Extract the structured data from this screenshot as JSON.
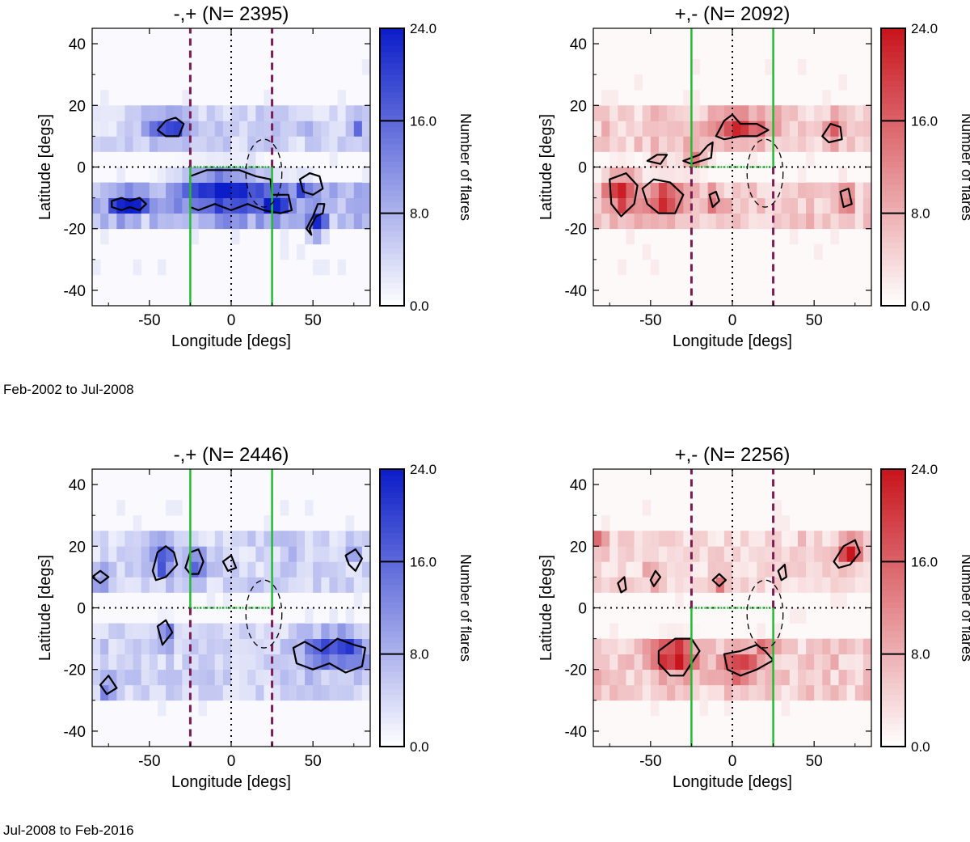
{
  "figure": {
    "period_labels": [
      "Feb-2002 to Jul-2008",
      "Jul-2008 to Feb-2016"
    ],
    "colorbar_label": "Number of flares",
    "colorbar_ticks": [
      "0.0",
      "8.0",
      "16.0",
      "24.0"
    ],
    "colorbar_range": [
      0,
      24
    ],
    "colorbar_contour_levels": [
      8,
      16
    ],
    "colors": {
      "blue_max": "#0b1dc8",
      "red_max": "#c8141c",
      "green_line": "#22bb33",
      "purple_dash": "#7a1c55"
    }
  },
  "chart_data": [
    {
      "type": "heatmap",
      "title": "-,+ (N= 2395)",
      "colormap": "blue",
      "xlabel": "Longitude [degs]",
      "ylabel": "Latitude [degs]",
      "xlim": [
        -85,
        85
      ],
      "ylim": [
        -45,
        45
      ],
      "xticks": [
        -50,
        0,
        50
      ],
      "yticks": [
        -40,
        -20,
        0,
        20,
        40
      ],
      "green_box": {
        "x": [
          -25,
          25
        ],
        "y_from": 0,
        "y_to": -45
      },
      "dashed_lines_x": [
        -25,
        25
      ],
      "dashed_span": [
        0,
        45
      ],
      "circle": {
        "x": 20,
        "y": -2,
        "r": 11
      },
      "bands": [
        {
          "lat": [
            5,
            18
          ],
          "peak": 7
        },
        {
          "lat": [
            -18,
            -4
          ],
          "peak": 10
        }
      ],
      "hotspots": [
        {
          "lon": -38,
          "lat": 13,
          "value": 20,
          "rlon": 8,
          "rlat": 3
        },
        {
          "lon": -5,
          "lat": -8,
          "value": 23,
          "rlon": 20,
          "rlat": 5
        },
        {
          "lon": 28,
          "lat": -12,
          "value": 20,
          "rlon": 6,
          "rlat": 3
        },
        {
          "lon": -68,
          "lat": -12,
          "value": 22,
          "rlon": 5,
          "rlat": 3
        },
        {
          "lon": -58,
          "lat": -12,
          "value": 19,
          "rlon": 4,
          "rlat": 2
        },
        {
          "lon": 52,
          "lat": -19,
          "value": 19,
          "rlon": 4,
          "rlat": 3
        },
        {
          "lon": 55,
          "lat": -10,
          "value": 15,
          "rlon": 3,
          "rlat": 2
        },
        {
          "lon": 45,
          "lat": -6,
          "value": 14,
          "rlon": 5,
          "rlat": 2
        },
        {
          "lon": 78,
          "lat": 13,
          "value": 14,
          "rlon": 2,
          "rlat": 2
        }
      ],
      "contours": [
        [
          [
            -45,
            12
          ],
          [
            -40,
            15
          ],
          [
            -34,
            16
          ],
          [
            -29,
            14
          ],
          [
            -32,
            10
          ],
          [
            -40,
            10
          ]
        ],
        [
          [
            -25,
            -3
          ],
          [
            -15,
            -1
          ],
          [
            -5,
            -1
          ],
          [
            5,
            -1
          ],
          [
            15,
            -3
          ],
          [
            24,
            -4
          ],
          [
            25,
            -9
          ],
          [
            35,
            -9
          ],
          [
            37,
            -14
          ],
          [
            30,
            -15
          ],
          [
            20,
            -14
          ],
          [
            10,
            -12
          ],
          [
            0,
            -14
          ],
          [
            -10,
            -12
          ],
          [
            -20,
            -14
          ],
          [
            -25,
            -13
          ]
        ],
        [
          [
            -73,
            -11
          ],
          [
            -67,
            -10
          ],
          [
            -62,
            -11
          ],
          [
            -56,
            -10
          ],
          [
            -52,
            -12
          ],
          [
            -56,
            -14
          ],
          [
            -62,
            -13
          ],
          [
            -67,
            -14
          ],
          [
            -73,
            -13
          ]
        ],
        [
          [
            48,
            -20
          ],
          [
            52,
            -16
          ],
          [
            56,
            -15
          ],
          [
            57,
            -12
          ],
          [
            53,
            -12
          ],
          [
            50,
            -16
          ],
          [
            46,
            -20
          ],
          [
            49,
            -22
          ]
        ],
        [
          [
            42,
            -4
          ],
          [
            48,
            -2
          ],
          [
            54,
            -3
          ],
          [
            56,
            -7
          ],
          [
            50,
            -9
          ],
          [
            44,
            -8
          ]
        ]
      ]
    },
    {
      "type": "heatmap",
      "title": "+,- (N= 2092)",
      "colormap": "red",
      "xlabel": "Longitude [degs]",
      "ylabel": "Latitude [degs]",
      "xlim": [
        -85,
        85
      ],
      "ylim": [
        -45,
        45
      ],
      "xticks": [
        -50,
        0,
        50
      ],
      "yticks": [
        -40,
        -20,
        0,
        20,
        40
      ],
      "green_box": {
        "x": [
          -25,
          25
        ],
        "y_from": 0,
        "y_to": 45
      },
      "dashed_lines_x": [
        -25,
        25
      ],
      "dashed_span": [
        0,
        -45
      ],
      "circle": {
        "x": 20,
        "y": -2,
        "r": 11
      },
      "bands": [
        {
          "lat": [
            5,
            18
          ],
          "peak": 7
        },
        {
          "lat": [
            -18,
            -4
          ],
          "peak": 8
        }
      ],
      "hotspots": [
        {
          "lon": 5,
          "lat": 13,
          "value": 19,
          "rlon": 14,
          "rlat": 3
        },
        {
          "lon": -68,
          "lat": -8,
          "value": 20,
          "rlon": 7,
          "rlat": 5
        },
        {
          "lon": -40,
          "lat": -10,
          "value": 18,
          "rlon": 9,
          "rlat": 4
        },
        {
          "lon": -23,
          "lat": 3,
          "value": 14,
          "rlon": 6,
          "rlat": 3
        },
        {
          "lon": 62,
          "lat": 12,
          "value": 15,
          "rlon": 4,
          "rlat": 3
        },
        {
          "lon": 70,
          "lat": -10,
          "value": 14,
          "rlon": 3,
          "rlat": 3
        },
        {
          "lon": -45,
          "lat": 4,
          "value": 12,
          "rlon": 4,
          "rlat": 2
        },
        {
          "lon": -12,
          "lat": -10,
          "value": 14,
          "rlon": 3,
          "rlat": 2
        }
      ],
      "contours": [
        [
          [
            -10,
            10
          ],
          [
            -5,
            15
          ],
          [
            0,
            17
          ],
          [
            5,
            14
          ],
          [
            15,
            14
          ],
          [
            22,
            12
          ],
          [
            15,
            10
          ],
          [
            5,
            10
          ],
          [
            -5,
            9
          ]
        ],
        [
          [
            -75,
            -4
          ],
          [
            -65,
            -2
          ],
          [
            -58,
            -6
          ],
          [
            -60,
            -12
          ],
          [
            -68,
            -16
          ],
          [
            -74,
            -12
          ]
        ],
        [
          [
            -55,
            -7
          ],
          [
            -48,
            -4
          ],
          [
            -38,
            -5
          ],
          [
            -30,
            -9
          ],
          [
            -35,
            -15
          ],
          [
            -45,
            -15
          ],
          [
            -52,
            -12
          ]
        ],
        [
          [
            -30,
            2
          ],
          [
            -20,
            4
          ],
          [
            -15,
            7
          ],
          [
            -12,
            8
          ],
          [
            -13,
            3
          ],
          [
            -25,
            1
          ]
        ],
        [
          [
            55,
            10
          ],
          [
            60,
            14
          ],
          [
            66,
            13
          ],
          [
            67,
            9
          ],
          [
            59,
            8
          ]
        ],
        [
          [
            -52,
            2
          ],
          [
            -46,
            4
          ],
          [
            -40,
            4
          ],
          [
            -44,
            1
          ]
        ],
        [
          [
            -14,
            -9
          ],
          [
            -10,
            -8
          ],
          [
            -8,
            -11
          ],
          [
            -12,
            -13
          ]
        ],
        [
          [
            66,
            -8
          ],
          [
            71,
            -7
          ],
          [
            73,
            -12
          ],
          [
            68,
            -13
          ]
        ]
      ]
    },
    {
      "type": "heatmap",
      "title": "-,+ (N= 2446)",
      "colormap": "blue",
      "xlabel": "Longitude [degs]",
      "ylabel": "Latitude [degs]",
      "xlim": [
        -85,
        85
      ],
      "ylim": [
        -45,
        45
      ],
      "xticks": [
        -50,
        0,
        50
      ],
      "yticks": [
        -40,
        -20,
        0,
        20,
        40
      ],
      "green_box": {
        "x": [
          -25,
          25
        ],
        "y_from": 0,
        "y_to": 45
      },
      "dashed_lines_x": [
        -25,
        25
      ],
      "dashed_span": [
        0,
        -45
      ],
      "circle": {
        "x": 20,
        "y": -2,
        "r": 11
      },
      "bands": [
        {
          "lat": [
            5,
            25
          ],
          "peak": 7
        },
        {
          "lat": [
            -28,
            -5
          ],
          "peak": 7
        }
      ],
      "hotspots": [
        {
          "lon": -42,
          "lat": 16,
          "value": 17,
          "rlon": 5,
          "rlat": 4
        },
        {
          "lon": -20,
          "lat": 15,
          "value": 16,
          "rlon": 4,
          "rlat": 3
        },
        {
          "lon": 65,
          "lat": -14,
          "value": 20,
          "rlon": 14,
          "rlat": 4
        },
        {
          "lon": -75,
          "lat": -25,
          "value": 16,
          "rlon": 3,
          "rlat": 2
        },
        {
          "lon": 75,
          "lat": 17,
          "value": 13,
          "rlon": 3,
          "rlat": 2
        },
        {
          "lon": -80,
          "lat": 10,
          "value": 14,
          "rlon": 4,
          "rlat": 2
        },
        {
          "lon": -40,
          "lat": -8,
          "value": 13,
          "rlon": 3,
          "rlat": 3
        },
        {
          "lon": 35,
          "lat": 20,
          "value": 12,
          "rlon": 2,
          "rlat": 2
        }
      ],
      "contours": [
        [
          [
            -48,
            12
          ],
          [
            -45,
            18
          ],
          [
            -40,
            20
          ],
          [
            -35,
            18
          ],
          [
            -33,
            14
          ],
          [
            -40,
            10
          ],
          [
            -46,
            9
          ]
        ],
        [
          [
            -28,
            13
          ],
          [
            -25,
            18
          ],
          [
            -20,
            19
          ],
          [
            -17,
            15
          ],
          [
            -20,
            11
          ],
          [
            -25,
            11
          ]
        ],
        [
          [
            38,
            -13
          ],
          [
            45,
            -11
          ],
          [
            55,
            -14
          ],
          [
            65,
            -10
          ],
          [
            75,
            -12
          ],
          [
            82,
            -13
          ],
          [
            80,
            -19
          ],
          [
            70,
            -21
          ],
          [
            60,
            -18
          ],
          [
            50,
            -20
          ],
          [
            40,
            -18
          ]
        ],
        [
          [
            -80,
            -25
          ],
          [
            -75,
            -22
          ],
          [
            -70,
            -26
          ],
          [
            -76,
            -28
          ]
        ],
        [
          [
            70,
            17
          ],
          [
            76,
            19
          ],
          [
            80,
            16
          ],
          [
            76,
            12
          ],
          [
            72,
            14
          ]
        ],
        [
          [
            -85,
            10
          ],
          [
            -80,
            12
          ],
          [
            -75,
            10
          ],
          [
            -80,
            8
          ]
        ],
        [
          [
            -45,
            -6
          ],
          [
            -40,
            -4
          ],
          [
            -36,
            -8
          ],
          [
            -42,
            -12
          ]
        ],
        [
          [
            -5,
            15
          ],
          [
            0,
            17
          ],
          [
            3,
            13
          ],
          [
            -2,
            12
          ]
        ]
      ]
    },
    {
      "type": "heatmap",
      "title": "+,- (N= 2256)",
      "colormap": "red",
      "xlabel": "Longitude [degs]",
      "ylabel": "Latitude [degs]",
      "xlim": [
        -85,
        85
      ],
      "ylim": [
        -45,
        45
      ],
      "xticks": [
        -50,
        0,
        50
      ],
      "yticks": [
        -40,
        -20,
        0,
        20,
        40
      ],
      "green_box": {
        "x": [
          -25,
          25
        ],
        "y_from": 0,
        "y_to": -45
      },
      "dashed_lines_x": [
        -25,
        25
      ],
      "dashed_span": [
        0,
        45
      ],
      "circle": {
        "x": 20,
        "y": -2,
        "r": 11
      },
      "bands": [
        {
          "lat": [
            5,
            25
          ],
          "peak": 6
        },
        {
          "lat": [
            -28,
            -8
          ],
          "peak": 8
        }
      ],
      "hotspots": [
        {
          "lon": -35,
          "lat": -16,
          "value": 20,
          "rlon": 10,
          "rlat": 4
        },
        {
          "lon": 5,
          "lat": -19,
          "value": 19,
          "rlon": 8,
          "rlat": 3
        },
        {
          "lon": 72,
          "lat": 18,
          "value": 20,
          "rlon": 6,
          "rlat": 3
        },
        {
          "lon": -82,
          "lat": 21,
          "value": 17,
          "rlon": 3,
          "rlat": 2
        },
        {
          "lon": -8,
          "lat": 9,
          "value": 15,
          "rlon": 3,
          "rlat": 2
        },
        {
          "lon": -48,
          "lat": 10,
          "value": 12,
          "rlon": 3,
          "rlat": 2
        },
        {
          "lon": 20,
          "lat": -14,
          "value": 14,
          "rlon": 4,
          "rlat": 2
        }
      ],
      "contours": [
        [
          [
            -45,
            -14
          ],
          [
            -35,
            -10
          ],
          [
            -25,
            -10
          ],
          [
            -20,
            -14
          ],
          [
            -25,
            -18
          ],
          [
            -30,
            -22
          ],
          [
            -38,
            -22
          ],
          [
            -45,
            -18
          ]
        ],
        [
          [
            -5,
            -15
          ],
          [
            5,
            -14
          ],
          [
            15,
            -12
          ],
          [
            20,
            -14
          ],
          [
            25,
            -17
          ],
          [
            15,
            -20
          ],
          [
            5,
            -22
          ],
          [
            -3,
            -20
          ]
        ],
        [
          [
            62,
            15
          ],
          [
            68,
            20
          ],
          [
            75,
            22
          ],
          [
            78,
            18
          ],
          [
            72,
            14
          ],
          [
            65,
            13
          ]
        ],
        [
          [
            -12,
            9
          ],
          [
            -8,
            11
          ],
          [
            -4,
            9
          ],
          [
            -8,
            7
          ]
        ],
        [
          [
            -50,
            9
          ],
          [
            -47,
            12
          ],
          [
            -44,
            10
          ],
          [
            -48,
            7
          ]
        ],
        [
          [
            -70,
            8
          ],
          [
            -66,
            10
          ],
          [
            -65,
            6
          ],
          [
            -68,
            5
          ]
        ],
        [
          [
            28,
            12
          ],
          [
            32,
            14
          ],
          [
            33,
            10
          ],
          [
            30,
            9
          ]
        ]
      ]
    }
  ]
}
